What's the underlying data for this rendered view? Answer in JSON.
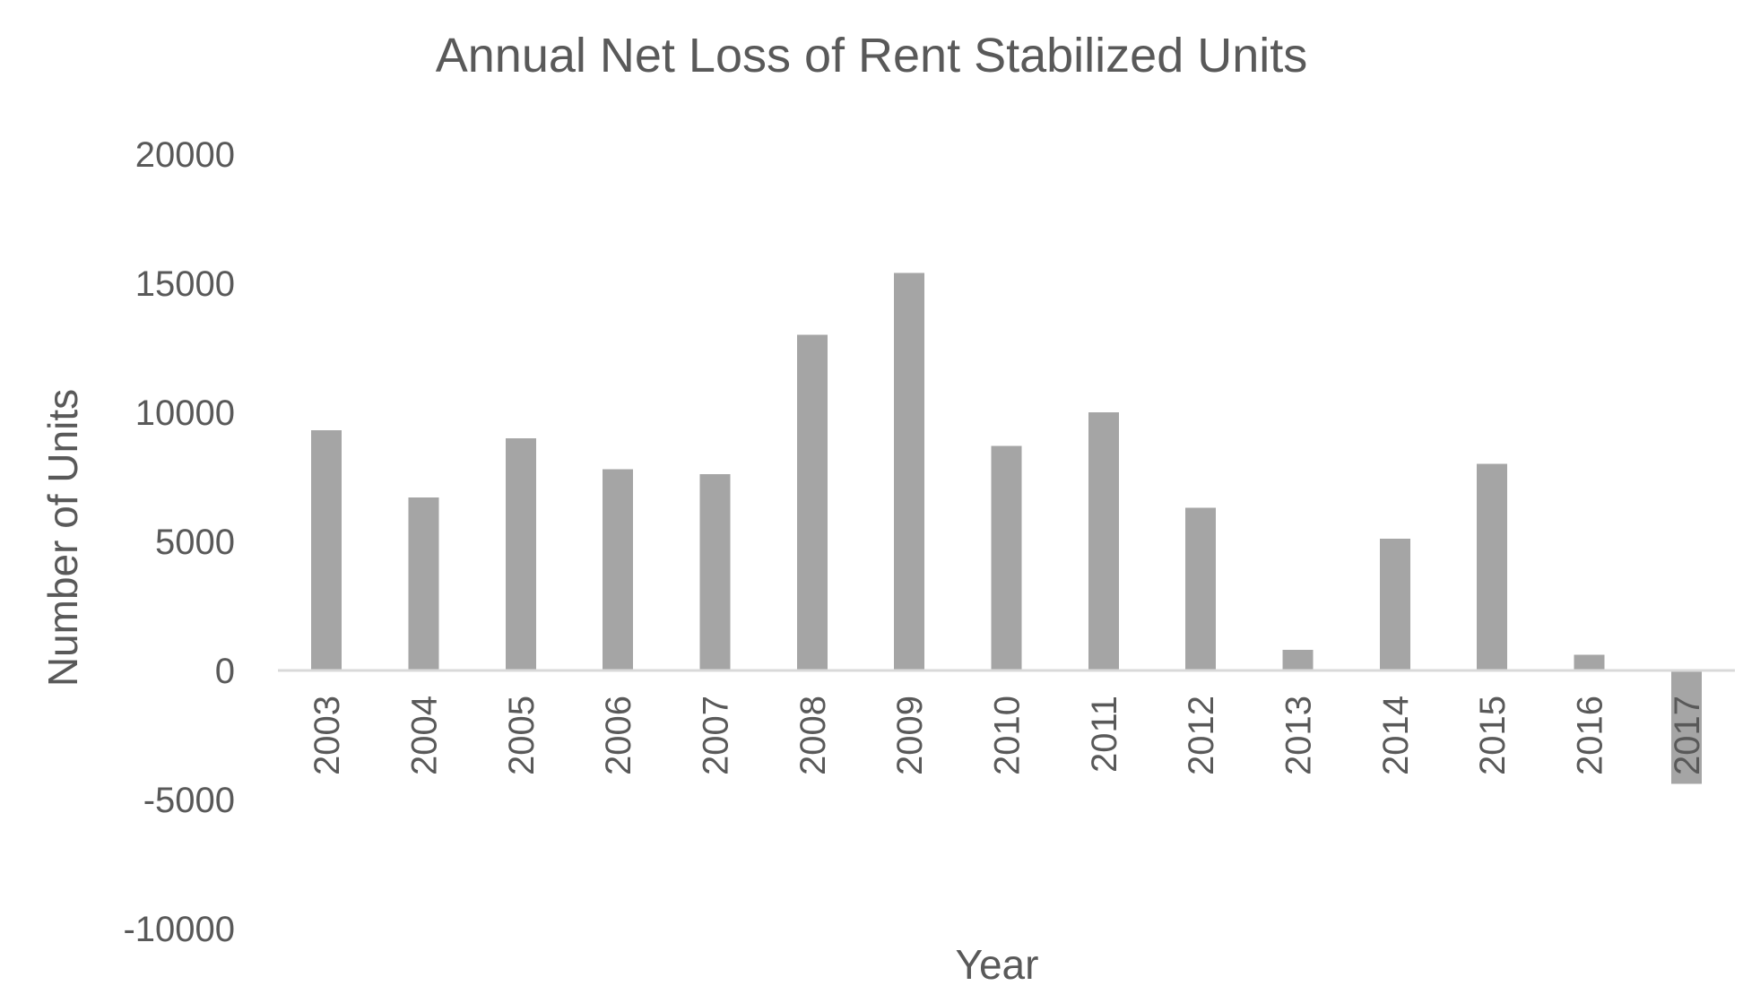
{
  "chart_data": {
    "type": "bar",
    "title": "Annual Net Loss of Rent Stabilized Units",
    "xlabel": "Year",
    "ylabel": "Number of Units",
    "categories": [
      "2003",
      "2004",
      "2005",
      "2006",
      "2007",
      "2008",
      "2009",
      "2010",
      "2011",
      "2012",
      "2013",
      "2014",
      "2015",
      "2016",
      "2017"
    ],
    "values": [
      9300,
      6700,
      9000,
      7800,
      7600,
      13000,
      15400,
      8700,
      10000,
      6300,
      800,
      5100,
      8000,
      600,
      -4400
    ],
    "ylim": [
      -10000,
      20000
    ],
    "yticks": [
      20000,
      15000,
      10000,
      5000,
      0,
      -5000,
      -10000
    ],
    "bar_color": "#a5a5a5",
    "text_color": "#595959",
    "zero_line_color": "#d9d9d9",
    "grid": false,
    "legend": "none"
  }
}
